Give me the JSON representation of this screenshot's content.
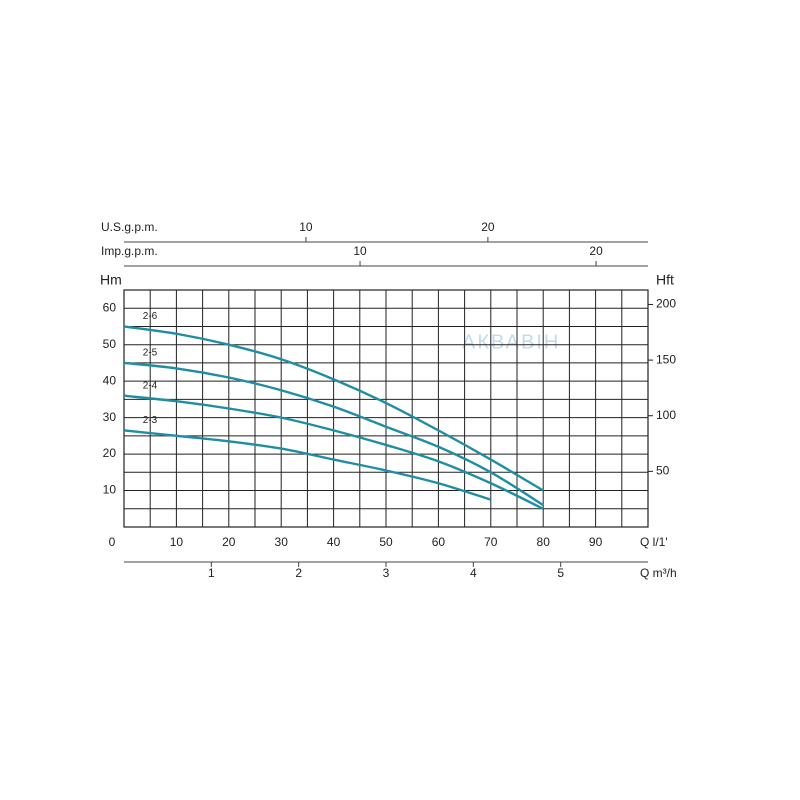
{
  "chart_data": {
    "type": "line",
    "x": [
      0,
      10,
      20,
      30,
      40,
      50,
      60,
      70,
      80
    ],
    "series": [
      {
        "name": "2-6",
        "color": "#1f8ea3",
        "values": [
          55,
          53,
          50,
          46,
          40.5,
          34,
          26.5,
          18.5,
          10
        ]
      },
      {
        "name": "2-5",
        "color": "#1f8ea3",
        "values": [
          45,
          43.5,
          41,
          37.5,
          33,
          27.5,
          22,
          15,
          6
        ]
      },
      {
        "name": "2-4",
        "color": "#1f8ea3",
        "values": [
          36,
          34.5,
          32.5,
          30,
          26.5,
          22.5,
          18,
          12,
          5
        ]
      },
      {
        "name": "2-3",
        "color": "#1f8ea3",
        "values": [
          26.5,
          25,
          23.5,
          21.5,
          18.5,
          15.5,
          12,
          7.5,
          null
        ]
      }
    ],
    "xlabel": "Q  l/1'",
    "xlim": [
      0,
      100
    ],
    "xticks": [
      0,
      10,
      20,
      30,
      40,
      50,
      60,
      70,
      80,
      90
    ],
    "x_minor_ticks": [
      5,
      15,
      25,
      35,
      45,
      55,
      65,
      75,
      85,
      95
    ],
    "ylabel": "Hm",
    "ylim": [
      0,
      65
    ],
    "yticks": [
      10,
      20,
      30,
      40,
      50,
      60
    ],
    "y_minor_ticks": [
      5,
      15,
      25,
      35,
      45,
      55
    ],
    "y2label": "Hft",
    "y2lim": [
      0,
      213
    ],
    "y2ticks": [
      50,
      100,
      150,
      200
    ],
    "grid": true,
    "extra_x_axes": [
      {
        "label": "U.S.g.p.m.",
        "lim": [
          0,
          28.8
        ],
        "ticks": [
          10,
          20
        ],
        "position": "top"
      },
      {
        "label": "Imp.g.p.m.",
        "lim": [
          0,
          22.2
        ],
        "ticks": [
          10,
          20
        ],
        "position": "top"
      },
      {
        "label": "Q  m³/h",
        "lim": [
          0,
          6
        ],
        "ticks": [
          1,
          2,
          3,
          4,
          5
        ],
        "position": "bottom"
      }
    ],
    "watermark": "АКВАВІН"
  }
}
